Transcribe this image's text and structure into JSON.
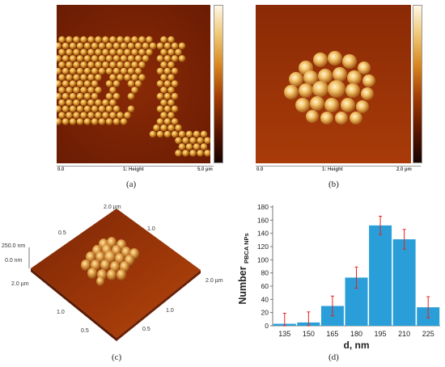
{
  "panels": {
    "a": {
      "caption": "(a)",
      "scale_left": "0.0",
      "scale_mid": "1: Height",
      "scale_right": "5.0 µm"
    },
    "b": {
      "caption": "(b)",
      "scale_left": "0.0",
      "scale_mid": "1: Height",
      "scale_right": "2.0 µm"
    },
    "c": {
      "caption": "(c)",
      "z_top": "250.0 nm",
      "z_bottom": "0.0 nm",
      "top_corner": "2.0 µm",
      "left_corner": "2.0 µm",
      "right_corner": "2.0 µm",
      "left_mid": "1.0",
      "left_near": "0.5",
      "right_mid": "1.0",
      "right_near": "0.5",
      "back_tick": "1.0",
      "back_left_tick": "0.5"
    },
    "d": {
      "caption": "(d)"
    }
  },
  "chart_data": {
    "type": "bar",
    "categories": [
      "135",
      "150",
      "165",
      "180",
      "195",
      "210",
      "225"
    ],
    "values": [
      3,
      5,
      30,
      73,
      152,
      131,
      28
    ],
    "errors": [
      16,
      16,
      15,
      16,
      14,
      15,
      16
    ],
    "xlabel": "d, nm",
    "ylabel_main": "Number",
    "ylabel_sub": "PBCA NPs",
    "ylim": [
      0,
      180
    ],
    "yticks": [
      0,
      20,
      40,
      60,
      80,
      100,
      120,
      140,
      160,
      180
    ],
    "grid": false,
    "bar_color": "#2a9ed8",
    "error_color": "#e8211d"
  }
}
